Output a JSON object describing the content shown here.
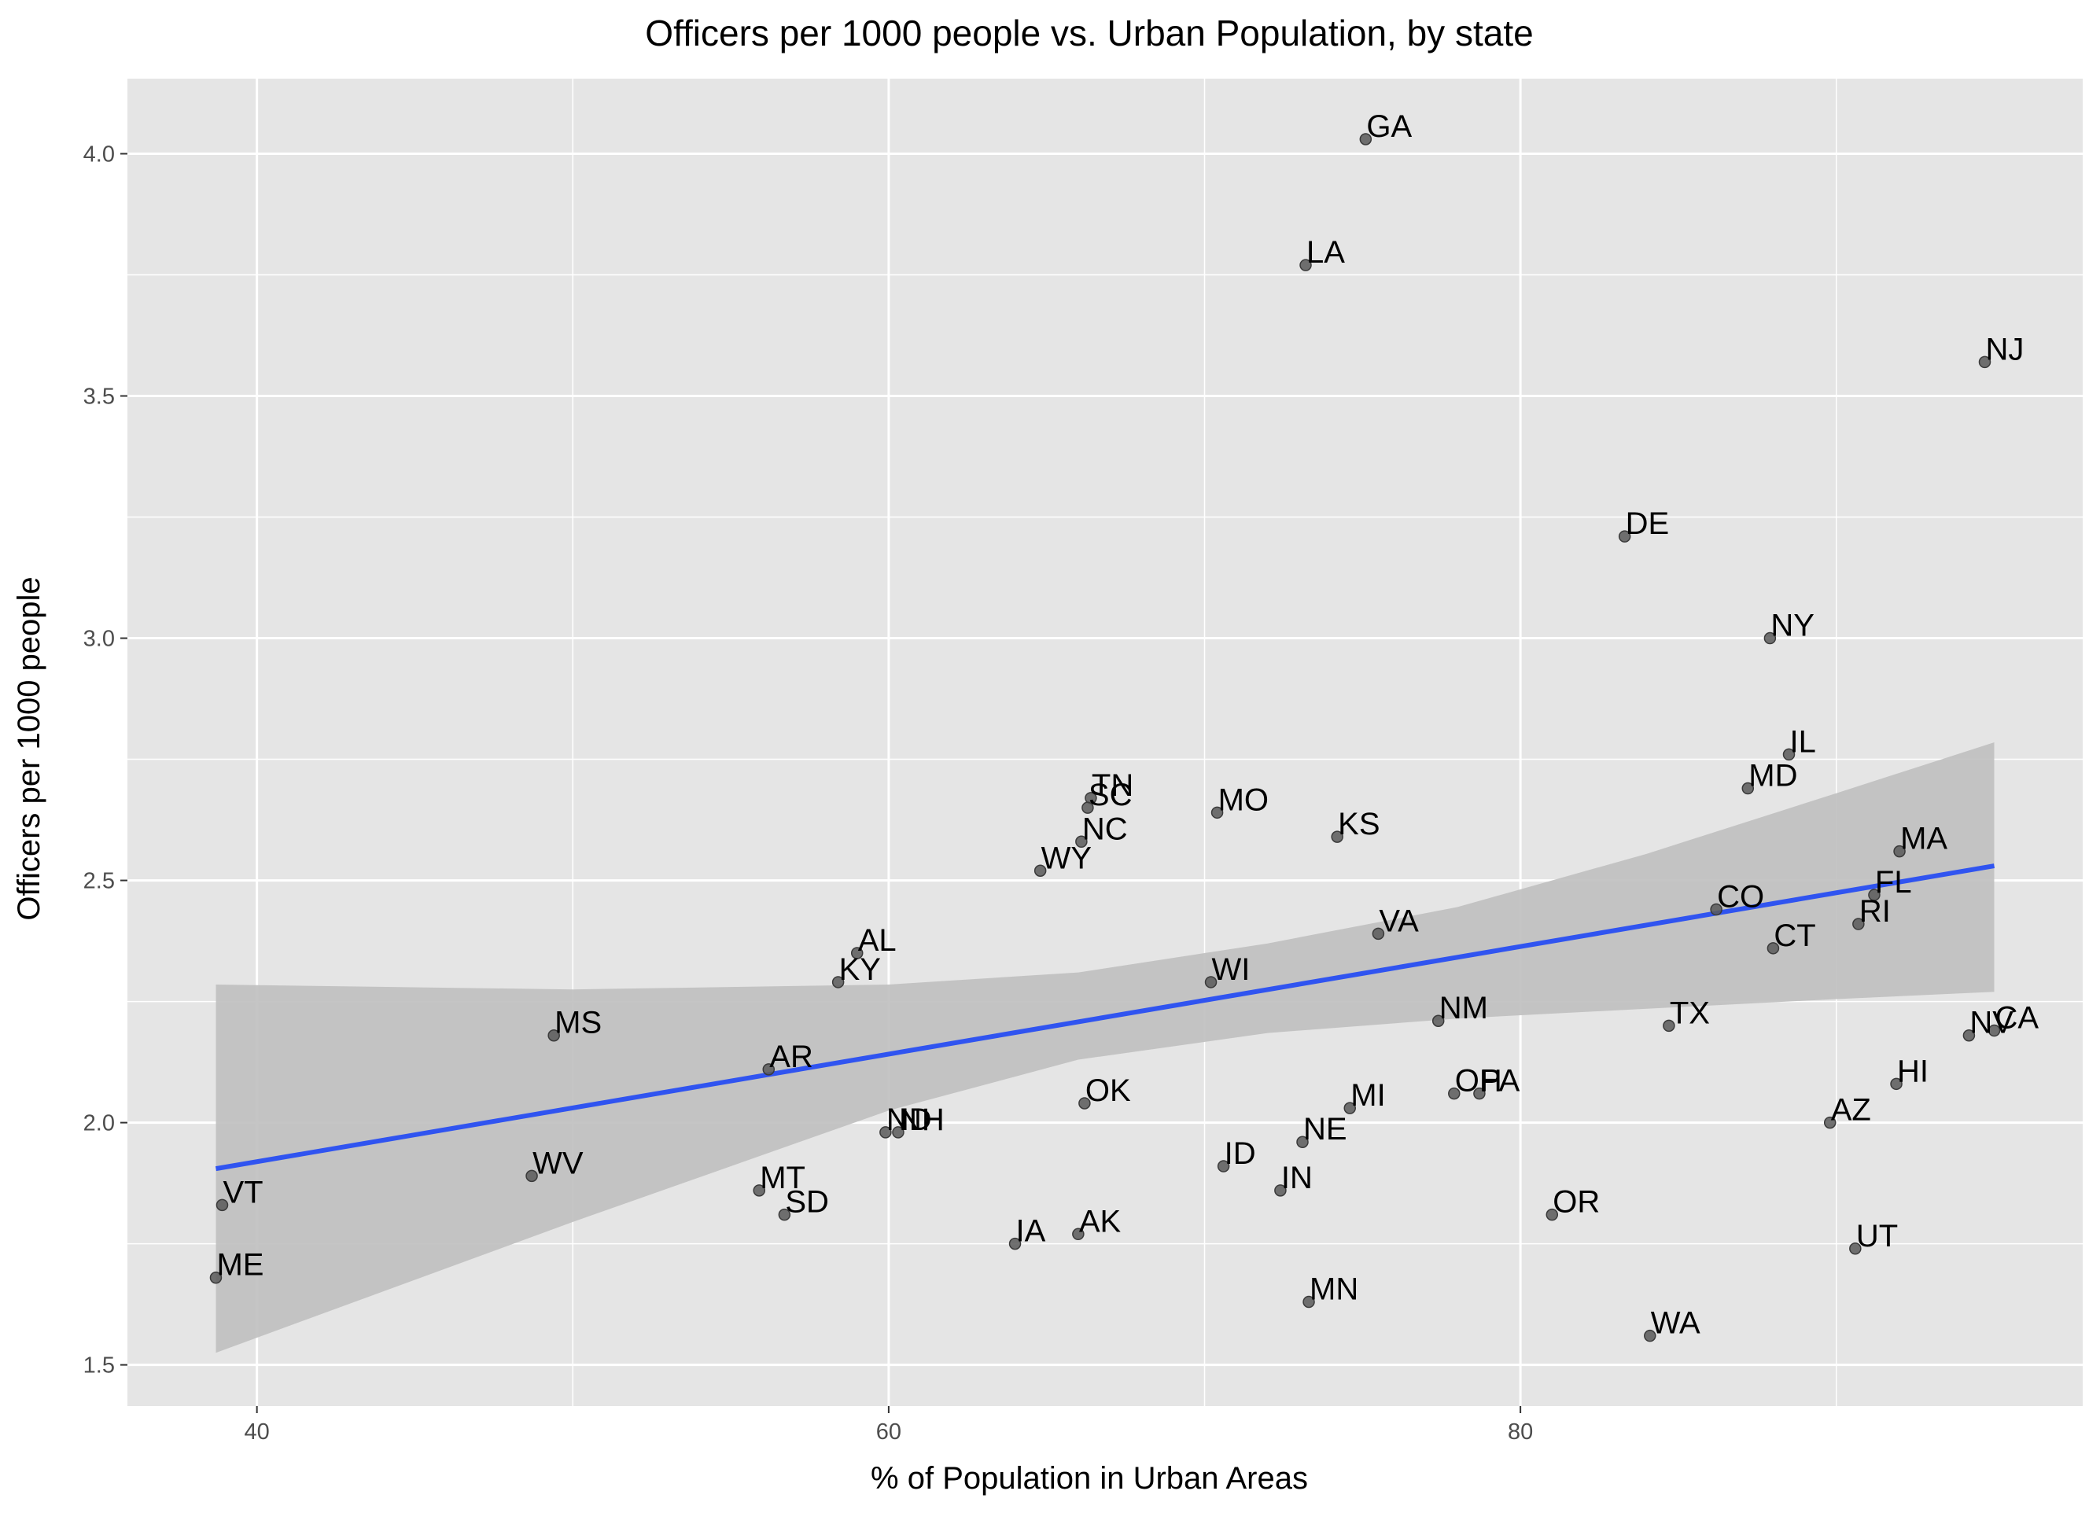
{
  "chart_data": {
    "type": "scatter",
    "title": "Officers per 1000 people vs. Urban Population, by state",
    "xlabel": "% of Population in Urban Areas",
    "ylabel": "Officers per 1000 people",
    "xlim": [
      35.9,
      97.8
    ],
    "ylim": [
      1.415,
      4.155
    ],
    "x_ticks": [
      40,
      60,
      80
    ],
    "x_tick_labels": [
      "40",
      "60",
      "80"
    ],
    "x_minor_ticks": [
      50,
      70,
      90
    ],
    "y_ticks": [
      1.5,
      2.0,
      2.5,
      3.0,
      3.5,
      4.0
    ],
    "y_tick_labels": [
      "1.5",
      "2.0",
      "2.5",
      "3.0",
      "3.5",
      "4.0"
    ],
    "y_minor_ticks": [
      1.75,
      2.25,
      2.75,
      3.25,
      3.75
    ],
    "grid": true,
    "legend": "none",
    "colors": {
      "panel": "#e5e5e5",
      "grid": "#ffffff",
      "point": "#595959",
      "trend_line": "#3054f0",
      "confidence_band": "#bfbfbf"
    },
    "points": [
      {
        "label": "GA",
        "x": 75.1,
        "y": 4.03
      },
      {
        "label": "LA",
        "x": 73.2,
        "y": 3.77
      },
      {
        "label": "NJ",
        "x": 94.7,
        "y": 3.57
      },
      {
        "label": "DE",
        "x": 83.3,
        "y": 3.21
      },
      {
        "label": "NY",
        "x": 87.9,
        "y": 3.0
      },
      {
        "label": "IL",
        "x": 88.5,
        "y": 2.76
      },
      {
        "label": "MD",
        "x": 87.2,
        "y": 2.69
      },
      {
        "label": "TN",
        "x": 66.4,
        "y": 2.67
      },
      {
        "label": "SC",
        "x": 66.3,
        "y": 2.65
      },
      {
        "label": "MO",
        "x": 70.4,
        "y": 2.64
      },
      {
        "label": "KS",
        "x": 74.2,
        "y": 2.59
      },
      {
        "label": "NC",
        "x": 66.1,
        "y": 2.58
      },
      {
        "label": "MA",
        "x": 92.0,
        "y": 2.56
      },
      {
        "label": "WY",
        "x": 64.8,
        "y": 2.52
      },
      {
        "label": "FL",
        "x": 91.2,
        "y": 2.47
      },
      {
        "label": "CO",
        "x": 86.2,
        "y": 2.44
      },
      {
        "label": "RI",
        "x": 90.7,
        "y": 2.41
      },
      {
        "label": "VA",
        "x": 75.5,
        "y": 2.39
      },
      {
        "label": "CT",
        "x": 88.0,
        "y": 2.36
      },
      {
        "label": "AL",
        "x": 59.0,
        "y": 2.35
      },
      {
        "label": "KY",
        "x": 58.4,
        "y": 2.29
      },
      {
        "label": "WI",
        "x": 70.2,
        "y": 2.29
      },
      {
        "label": "NM",
        "x": 77.4,
        "y": 2.21
      },
      {
        "label": "TX",
        "x": 84.7,
        "y": 2.2
      },
      {
        "label": "CA",
        "x": 95.0,
        "y": 2.19
      },
      {
        "label": "NV",
        "x": 94.2,
        "y": 2.18
      },
      {
        "label": "MS",
        "x": 49.4,
        "y": 2.18
      },
      {
        "label": "AR",
        "x": 56.2,
        "y": 2.11
      },
      {
        "label": "HI",
        "x": 91.9,
        "y": 2.08
      },
      {
        "label": "OH",
        "x": 77.9,
        "y": 2.06
      },
      {
        "label": "PA",
        "x": 78.7,
        "y": 2.06
      },
      {
        "label": "OK",
        "x": 66.2,
        "y": 2.04
      },
      {
        "label": "MI",
        "x": 74.6,
        "y": 2.03
      },
      {
        "label": "AZ",
        "x": 89.8,
        "y": 2.0
      },
      {
        "label": "ND",
        "x": 59.9,
        "y": 1.98
      },
      {
        "label": "NH",
        "x": 60.3,
        "y": 1.98
      },
      {
        "label": "NE",
        "x": 73.1,
        "y": 1.96
      },
      {
        "label": "ID",
        "x": 70.6,
        "y": 1.91
      },
      {
        "label": "WV",
        "x": 48.7,
        "y": 1.89
      },
      {
        "label": "MT",
        "x": 55.9,
        "y": 1.86
      },
      {
        "label": "IN",
        "x": 72.4,
        "y": 1.86
      },
      {
        "label": "VT",
        "x": 38.9,
        "y": 1.83
      },
      {
        "label": "OR",
        "x": 81.0,
        "y": 1.81
      },
      {
        "label": "SD",
        "x": 56.7,
        "y": 1.81
      },
      {
        "label": "AK",
        "x": 66.0,
        "y": 1.77
      },
      {
        "label": "IA",
        "x": 64.0,
        "y": 1.75
      },
      {
        "label": "UT",
        "x": 90.6,
        "y": 1.74
      },
      {
        "label": "ME",
        "x": 38.7,
        "y": 1.68
      },
      {
        "label": "MN",
        "x": 73.3,
        "y": 1.63
      },
      {
        "label": "WA",
        "x": 84.1,
        "y": 1.56
      }
    ],
    "trend_line": {
      "x": [
        38.7,
        95.0
      ],
      "y": [
        1.905,
        2.53
      ]
    },
    "confidence_band": {
      "x": [
        38.7,
        50.0,
        60.0,
        66.0,
        72.0,
        78.0,
        84.0,
        90.0,
        95.0
      ],
      "lower": [
        1.525,
        1.795,
        2.025,
        2.13,
        2.185,
        2.215,
        2.235,
        2.255,
        2.27
      ],
      "upper": [
        2.285,
        2.275,
        2.285,
        2.31,
        2.37,
        2.445,
        2.555,
        2.68,
        2.785
      ]
    }
  }
}
